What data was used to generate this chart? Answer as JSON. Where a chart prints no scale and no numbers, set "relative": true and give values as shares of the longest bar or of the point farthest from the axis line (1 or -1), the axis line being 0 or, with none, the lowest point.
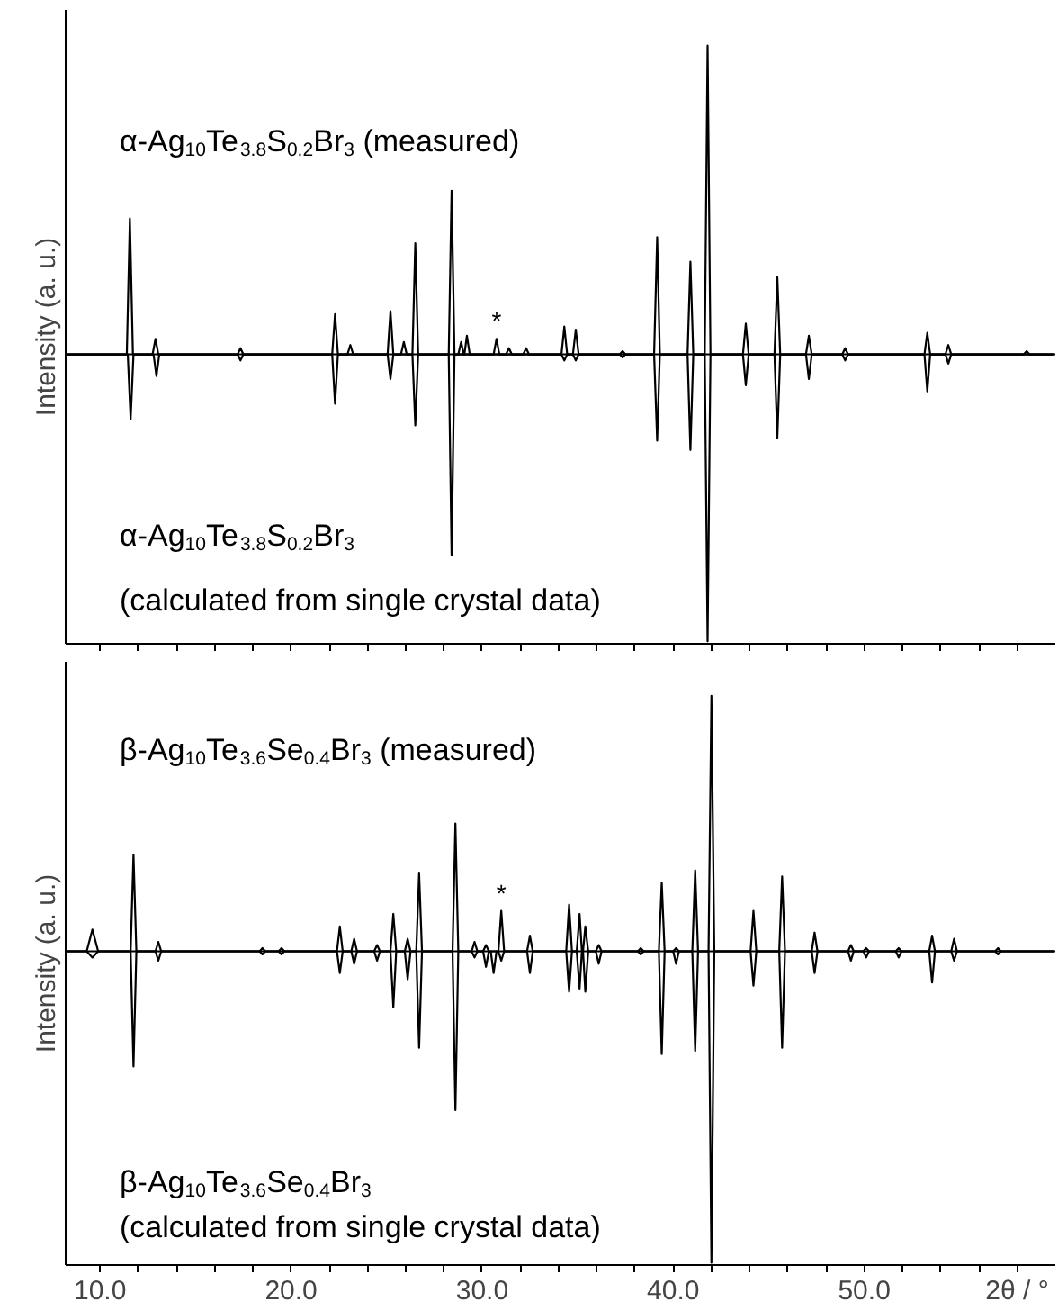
{
  "chart_data": [
    {
      "type": "line",
      "relative": true,
      "ylabel": "Intensity (a. u.)",
      "xlim": [
        8.2,
        60
      ],
      "tick_labels": false,
      "xticks": [
        {
          "value": 10,
          "label": null
        },
        {
          "value": 12,
          "label": null
        },
        {
          "value": 14,
          "label": null
        },
        {
          "value": 16,
          "label": null
        },
        {
          "value": 18,
          "label": null
        },
        {
          "value": 20,
          "label": null
        },
        {
          "value": 22,
          "label": null
        },
        {
          "value": 24,
          "label": null
        },
        {
          "value": 26,
          "label": null
        },
        {
          "value": 28,
          "label": null
        },
        {
          "value": 30,
          "label": null
        },
        {
          "value": 32,
          "label": null
        },
        {
          "value": 34,
          "label": null
        },
        {
          "value": 36,
          "label": null
        },
        {
          "value": 38,
          "label": null
        },
        {
          "value": 40,
          "label": null
        },
        {
          "value": 42,
          "label": null
        },
        {
          "value": 44,
          "label": null
        },
        {
          "value": 46,
          "label": null
        },
        {
          "value": 48,
          "label": null
        },
        {
          "value": 50,
          "label": null
        },
        {
          "value": 52,
          "label": null
        },
        {
          "value": 54,
          "label": null
        },
        {
          "value": 56,
          "label": null
        },
        {
          "value": 58,
          "label": null
        }
      ],
      "annotations": [
        "α-Ag$_{10}$Te$_{3.8}$S$_{0.2}$Br$_{3}$ (measured)",
        "α-Ag$_{10}$Te$_{3.8}$S$_{0.2}$Br$_{3}$",
        "(calculated from single crystal data)",
        {
          "text": "*",
          "x": 30.75,
          "y": 0.05
        }
      ],
      "series": [
        {
          "color": "#000000",
          "x": [
            8.3,
            11.4,
            11.56,
            11.72,
            12.75,
            12.9,
            13.05,
            17.2,
            17.35,
            17.5,
            22.15,
            22.3,
            22.45,
            22.95,
            23.1,
            23.25,
            25.05,
            25.2,
            25.35,
            25.75,
            25.9,
            26.05,
            26.35,
            26.5,
            26.65,
            28.25,
            28.4,
            28.55,
            28.75,
            28.9,
            29.03,
            29.07,
            29.2,
            29.35,
            30.6,
            30.75,
            30.9,
            31.25,
            31.4,
            31.55,
            32.15,
            32.3,
            32.45,
            34.15,
            34.3,
            34.45,
            34.75,
            34.9,
            35.05,
            37.2,
            37.35,
            37.5,
            39.0,
            39.16,
            39.3,
            40.75,
            40.9,
            41.05,
            41.65,
            41.8,
            41.95,
            43.65,
            43.8,
            43.95,
            45.3,
            45.45,
            45.6,
            46.95,
            47.1,
            47.25,
            48.85,
            49.0,
            49.15,
            53.15,
            53.3,
            53.45,
            54.25,
            54.4,
            54.55,
            58.35,
            58.5,
            58.65,
            59.9
          ],
          "values": [
            0,
            0,
            0.44,
            0,
            0,
            0.05,
            0,
            0,
            0.02,
            0,
            0,
            0.13,
            0,
            0,
            0.03,
            0,
            0,
            0.14,
            0,
            0,
            0.04,
            0,
            0,
            0.36,
            0,
            0,
            0.53,
            0,
            0,
            0.04,
            0,
            0,
            0.06,
            0,
            0,
            0.05,
            0,
            0,
            0.02,
            0,
            0,
            0.02,
            0,
            0,
            0.09,
            0,
            0,
            0.08,
            0,
            0,
            0.01,
            0,
            0,
            0.38,
            0,
            0,
            0.3,
            0,
            0,
            1,
            0,
            0,
            0.1,
            0,
            0,
            0.25,
            0,
            0,
            0.06,
            0,
            0,
            0.02,
            0,
            0,
            0.07,
            0,
            0,
            0.03,
            0,
            0,
            0.01,
            0,
            0
          ]
        },
        {
          "color": "#000000",
          "x": [
            8.3,
            11.45,
            11.6,
            11.75,
            12.8,
            12.95,
            13.1,
            17.2,
            17.35,
            17.5,
            22.15,
            22.3,
            22.45,
            25.05,
            25.2,
            25.35,
            26.35,
            26.5,
            26.65,
            28.25,
            28.4,
            28.55,
            34.15,
            34.3,
            34.45,
            34.75,
            34.9,
            35.05,
            37.2,
            37.35,
            37.5,
            39.0,
            39.16,
            39.3,
            40.75,
            40.9,
            41.05,
            41.65,
            41.8,
            41.95,
            43.65,
            43.8,
            43.95,
            45.3,
            45.45,
            45.6,
            46.95,
            47.1,
            47.25,
            48.85,
            49.0,
            49.15,
            53.15,
            53.3,
            53.45,
            54.25,
            54.4,
            54.55,
            59.9
          ],
          "values": [
            0,
            0,
            -0.21,
            0,
            0,
            -0.07,
            0,
            0,
            -0.02,
            0,
            0,
            -0.16,
            0,
            0,
            -0.08,
            0,
            0,
            -0.23,
            0,
            0,
            -0.65,
            0,
            0,
            -0.02,
            0,
            0,
            -0.02,
            0,
            0,
            -0.01,
            0,
            0,
            -0.28,
            0,
            0,
            -0.31,
            0,
            0,
            -0.93,
            0,
            0,
            -0.1,
            0,
            0,
            -0.27,
            0,
            0,
            -0.08,
            0,
            0,
            -0.02,
            0,
            0,
            -0.12,
            0,
            0,
            -0.03,
            0,
            0
          ]
        }
      ]
    },
    {
      "type": "line",
      "relative": true,
      "ylabel": "Intensity (a. u.)",
      "xlabel": "2θ / °",
      "xlim": [
        8.2,
        60
      ],
      "tick_labels": "x",
      "xticks": [
        {
          "value": 10,
          "label": "10.0"
        },
        {
          "value": 12,
          "label": null
        },
        {
          "value": 14,
          "label": null
        },
        {
          "value": 16,
          "label": null
        },
        {
          "value": 18,
          "label": null
        },
        {
          "value": 20,
          "label": "20.0"
        },
        {
          "value": 22,
          "label": null
        },
        {
          "value": 24,
          "label": null
        },
        {
          "value": 26,
          "label": null
        },
        {
          "value": 28,
          "label": null
        },
        {
          "value": 30,
          "label": "30.0"
        },
        {
          "value": 32,
          "label": null
        },
        {
          "value": 34,
          "label": null
        },
        {
          "value": 36,
          "label": null
        },
        {
          "value": 38,
          "label": null
        },
        {
          "value": 40,
          "label": "40.0"
        },
        {
          "value": 42,
          "label": null
        },
        {
          "value": 44,
          "label": null
        },
        {
          "value": 46,
          "label": null
        },
        {
          "value": 48,
          "label": null
        },
        {
          "value": 50,
          "label": "50.0"
        },
        {
          "value": 52,
          "label": null
        },
        {
          "value": 54,
          "label": null
        },
        {
          "value": 56,
          "label": null
        },
        {
          "value": 58,
          "label": null
        }
      ],
      "annotations": [
        "β-Ag$_{10}$Te$_{3.6}$Se$_{0.4}$Br$_{3}$ (measured)",
        "β-Ag$_{10}$Te$_{3.6}$Se$_{0.4}$Br$_{3}$",
        "(calculated from single crystal data)",
        {
          "text": "*",
          "x": 31.0,
          "y": 0.13
        }
      ],
      "series": [
        {
          "color": "#000000",
          "x": [
            8.3,
            9.3,
            9.6,
            9.9,
            11.6,
            11.75,
            11.9,
            12.9,
            13.05,
            13.2,
            18.35,
            18.5,
            18.65,
            19.35,
            19.5,
            19.65,
            22.4,
            22.55,
            22.7,
            23.15,
            23.3,
            23.45,
            24.35,
            24.5,
            24.65,
            25.2,
            25.35,
            25.5,
            25.95,
            26.1,
            26.25,
            26.55,
            26.7,
            26.85,
            28.45,
            28.6,
            28.75,
            29.45,
            29.6,
            29.75,
            30.05,
            30.2,
            30.35,
            30.85,
            31.0,
            31.15,
            32.35,
            32.5,
            32.65,
            34.4,
            34.55,
            34.7,
            34.95,
            35.1,
            35.22,
            35.28,
            35.4,
            35.55,
            35.95,
            36.1,
            36.25,
            38.15,
            38.3,
            38.45,
            39.25,
            39.4,
            39.55,
            40.0,
            40.15,
            40.3,
            41.0,
            41.15,
            41.3,
            41.85,
            42.0,
            42.15,
            44.05,
            44.2,
            44.35,
            45.55,
            45.7,
            45.85,
            47.25,
            47.4,
            47.55,
            49.15,
            49.3,
            49.45,
            49.95,
            50.1,
            50.25,
            51.65,
            51.8,
            51.95,
            53.4,
            53.55,
            53.7,
            54.55,
            54.7,
            54.85,
            56.85,
            57.0,
            57.15,
            59.9
          ],
          "values": [
            0,
            0,
            0.07,
            0,
            0,
            0.31,
            0,
            0,
            0.03,
            0,
            0,
            0.01,
            0,
            0,
            0.01,
            0,
            0,
            0.08,
            0,
            0,
            0.04,
            0,
            0,
            0.02,
            0,
            0,
            0.12,
            0,
            0,
            0.04,
            0,
            0,
            0.25,
            0,
            0,
            0.41,
            0,
            0,
            0.03,
            0,
            0,
            0.02,
            0,
            0,
            0.13,
            0,
            0,
            0.05,
            0,
            0,
            0.15,
            0,
            0,
            0.12,
            0,
            0,
            0.08,
            0,
            0,
            0.02,
            0,
            0,
            0.01,
            0,
            0,
            0.22,
            0,
            0,
            0.01,
            0,
            0,
            0.26,
            0,
            0,
            0.82,
            0,
            0,
            0.13,
            0,
            0,
            0.24,
            0,
            0,
            0.06,
            0,
            0,
            0.02,
            0,
            0,
            0.01,
            0,
            0,
            0.01,
            0,
            0,
            0.05,
            0,
            0,
            0.04,
            0,
            0,
            0.01,
            0,
            0
          ]
        },
        {
          "color": "#000000",
          "x": [
            8.3,
            9.3,
            9.6,
            9.9,
            11.6,
            11.75,
            11.9,
            12.9,
            13.05,
            13.2,
            18.35,
            18.5,
            18.65,
            19.35,
            19.5,
            19.65,
            22.4,
            22.55,
            22.7,
            23.15,
            23.3,
            23.45,
            24.35,
            24.5,
            24.65,
            25.2,
            25.35,
            25.5,
            25.95,
            26.1,
            26.25,
            26.55,
            26.7,
            26.85,
            28.45,
            28.6,
            28.75,
            29.45,
            29.6,
            29.75,
            30.05,
            30.2,
            30.35,
            30.45,
            30.6,
            30.75,
            30.85,
            31.0,
            31.15,
            32.35,
            32.5,
            32.65,
            34.4,
            34.55,
            34.7,
            34.95,
            35.1,
            35.22,
            35.28,
            35.4,
            35.55,
            35.95,
            36.1,
            36.25,
            38.15,
            38.3,
            38.45,
            39.25,
            39.4,
            39.55,
            40.0,
            40.15,
            40.3,
            41.0,
            41.15,
            41.3,
            41.85,
            42.0,
            42.15,
            44.05,
            44.2,
            44.35,
            45.55,
            45.7,
            45.85,
            47.25,
            47.4,
            47.55,
            49.15,
            49.3,
            49.45,
            49.95,
            50.1,
            50.25,
            51.65,
            51.8,
            51.95,
            53.4,
            53.55,
            53.7,
            54.55,
            54.7,
            54.85,
            56.85,
            57.0,
            57.15,
            59.9
          ],
          "values": [
            0,
            0,
            -0.02,
            0,
            0,
            -0.37,
            0,
            0,
            -0.03,
            0,
            0,
            -0.01,
            0,
            0,
            -0.01,
            0,
            0,
            -0.07,
            0,
            0,
            -0.04,
            0,
            0,
            -0.03,
            0,
            0,
            -0.18,
            0,
            0,
            -0.09,
            0,
            0,
            -0.31,
            0,
            0,
            -0.51,
            0,
            0,
            -0.02,
            0,
            0,
            -0.05,
            0,
            0,
            -0.07,
            0,
            0,
            -0.03,
            0,
            0,
            -0.07,
            0,
            0,
            -0.13,
            0,
            0,
            -0.12,
            0,
            0,
            -0.13,
            0,
            0,
            -0.04,
            0,
            0,
            -0.01,
            0,
            0,
            -0.33,
            0,
            0,
            -0.04,
            0,
            0,
            -0.32,
            0,
            0,
            -1,
            0,
            0,
            -0.11,
            0,
            0,
            -0.31,
            0,
            0,
            -0.07,
            0,
            0,
            -0.03,
            0,
            0,
            -0.02,
            0,
            0,
            -0.02,
            0,
            0,
            -0.1,
            0,
            0,
            -0.03,
            0,
            0,
            -0.01,
            0,
            0
          ]
        }
      ]
    }
  ]
}
